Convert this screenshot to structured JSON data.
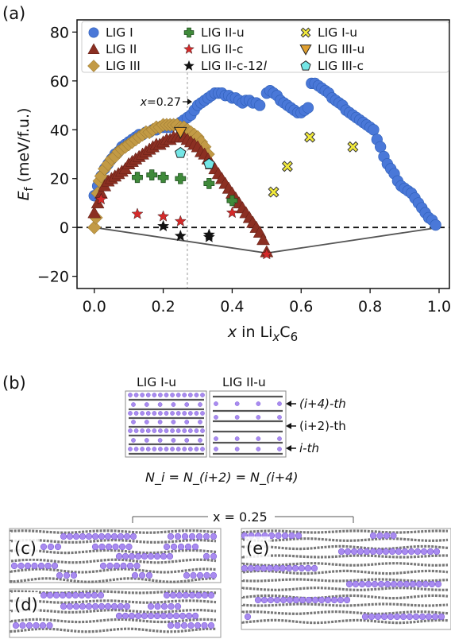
{
  "panels": {
    "a": "(a)",
    "b": "(b)",
    "c": "(c)",
    "d": "(d)",
    "e": "(e)"
  },
  "panel_b": {
    "left_title": "LIG I-u",
    "right_title": "LIG II-u",
    "layer_labels": [
      "(i+4)-th",
      "(i+2)-th",
      "i-th"
    ],
    "equation": "N_i = N_(i+2) = N_(i+4)"
  },
  "panel_c_e_label": "x = 0.25",
  "chart_data": {
    "type": "scatter",
    "xlabel": "x in LixC6",
    "ylabel": "Ef (meV/f.u.)",
    "xlim": [
      -0.05,
      1.03
    ],
    "ylim": [
      -25,
      85
    ],
    "xticks": [
      "0.0",
      "0.2",
      "0.4",
      "0.6",
      "0.8",
      "1.0"
    ],
    "yticks": [
      "−20",
      "0",
      "20",
      "40",
      "60",
      "80"
    ],
    "annotation": "x=0.27",
    "annotation_x": 0.27,
    "legend_position": "top",
    "hull": {
      "x": [
        0.0,
        0.5,
        1.0
      ],
      "y": [
        0,
        -10.5,
        0
      ]
    },
    "zero_line": 0,
    "series": [
      {
        "name": "LIG I",
        "marker": "circle",
        "color": "#4a78d8",
        "x": [
          0.0,
          0.01,
          0.02,
          0.03,
          0.04,
          0.05,
          0.06,
          0.07,
          0.08,
          0.09,
          0.1,
          0.11,
          0.12,
          0.13,
          0.14,
          0.15,
          0.16,
          0.17,
          0.18,
          0.19,
          0.2,
          0.21,
          0.22,
          0.23,
          0.24,
          0.25,
          0.26,
          0.27,
          0.28,
          0.29,
          0.3,
          0.31,
          0.32,
          0.33,
          0.34,
          0.35,
          0.36,
          0.37,
          0.38,
          0.39,
          0.4,
          0.41,
          0.42,
          0.43,
          0.44,
          0.45,
          0.46,
          0.47,
          0.48,
          0.5,
          0.51,
          0.52,
          0.53,
          0.54,
          0.55,
          0.56,
          0.57,
          0.58,
          0.59,
          0.6,
          0.61,
          0.62,
          0.63,
          0.64,
          0.65,
          0.66,
          0.67,
          0.68,
          0.69,
          0.7,
          0.71,
          0.72,
          0.73,
          0.74,
          0.75,
          0.76,
          0.77,
          0.78,
          0.79,
          0.8,
          0.81,
          0.82,
          0.83,
          0.84,
          0.85,
          0.86,
          0.87,
          0.88,
          0.89,
          0.9,
          0.91,
          0.92,
          0.93,
          0.94,
          0.95,
          0.96,
          0.97,
          0.98,
          0.99
        ],
        "y": [
          13,
          17,
          21,
          24,
          26,
          28,
          30,
          31,
          33,
          34,
          35,
          36,
          37,
          38,
          38,
          39,
          39,
          40,
          40,
          41,
          41,
          41,
          41,
          42,
          42,
          43,
          44,
          45,
          46,
          48,
          50,
          51,
          52,
          53,
          54,
          55,
          55,
          55,
          54,
          54,
          53,
          53,
          52,
          51,
          52,
          52,
          51,
          51,
          50,
          55,
          56,
          55,
          54,
          52,
          51,
          50,
          49,
          48,
          47,
          47,
          48,
          49,
          59,
          59,
          58,
          57,
          56,
          55,
          53,
          52,
          51,
          50,
          48,
          47,
          46,
          45,
          44,
          43,
          42,
          41,
          40,
          36,
          33,
          29,
          26,
          24,
          22,
          19,
          17,
          16,
          15,
          14,
          12,
          10,
          8,
          6,
          4,
          3,
          1
        ]
      },
      {
        "name": "LIG II",
        "marker": "triangle",
        "color": "#8b2f22",
        "x": [
          0.0,
          0.01,
          0.02,
          0.03,
          0.04,
          0.05,
          0.06,
          0.07,
          0.08,
          0.09,
          0.1,
          0.11,
          0.12,
          0.13,
          0.14,
          0.15,
          0.16,
          0.17,
          0.18,
          0.19,
          0.2,
          0.21,
          0.22,
          0.23,
          0.24,
          0.25,
          0.26,
          0.27,
          0.28,
          0.29,
          0.3,
          0.31,
          0.32,
          0.33,
          0.34,
          0.35,
          0.36,
          0.37,
          0.38,
          0.39,
          0.4,
          0.41,
          0.42,
          0.43,
          0.44,
          0.45,
          0.46,
          0.47,
          0.48,
          0.49,
          0.5
        ],
        "y": [
          6,
          10,
          14,
          17,
          19,
          20,
          21,
          22,
          23,
          24,
          26,
          27,
          28,
          29,
          30,
          31,
          32,
          33,
          34,
          34,
          35,
          36,
          36,
          37,
          37,
          37,
          37,
          36,
          35,
          34,
          33,
          31,
          30,
          28,
          26,
          24,
          22,
          20,
          18,
          16,
          14,
          12,
          10,
          8,
          6,
          4,
          2,
          0,
          -2,
          -5,
          -10
        ]
      },
      {
        "name": "LIG III",
        "marker": "diamond",
        "color": "#c29a45",
        "x": [
          0.0,
          0.005,
          0.01,
          0.015,
          0.02,
          0.03,
          0.04,
          0.05,
          0.06,
          0.07,
          0.08,
          0.09,
          0.1,
          0.11,
          0.12,
          0.13,
          0.14,
          0.15,
          0.16,
          0.17,
          0.18,
          0.19,
          0.2,
          0.21,
          0.22,
          0.23,
          0.24,
          0.25,
          0.26,
          0.27,
          0.28,
          0.29,
          0.3,
          0.31,
          0.32,
          0.33
        ],
        "y": [
          0,
          4,
          14,
          19,
          21,
          24,
          26,
          28,
          29,
          31,
          32,
          33,
          34,
          35,
          36,
          37,
          38,
          39,
          39,
          40,
          41,
          41,
          42,
          42,
          42,
          42,
          42,
          41,
          41,
          40,
          39,
          38,
          37,
          35,
          33,
          30
        ]
      },
      {
        "name": "LIG II-u",
        "marker": "plus",
        "color": "#3f8a3a",
        "x": [
          0.125,
          0.167,
          0.2,
          0.25,
          0.333,
          0.4
        ],
        "y": [
          20.5,
          21.5,
          20.5,
          20,
          18,
          11
        ]
      },
      {
        "name": "LIG II-c",
        "marker": "star",
        "color": "#d42a2a",
        "x": [
          0.02,
          0.125,
          0.2,
          0.25,
          0.4,
          0.5
        ],
        "y": [
          11.5,
          5.5,
          4.5,
          2.5,
          6,
          -11
        ]
      },
      {
        "name": "LIG II-c-12l",
        "marker": "star",
        "color": "#111111",
        "x": [
          0.2,
          0.25,
          0.333,
          0.333
        ],
        "y": [
          0.5,
          -3.5,
          -3,
          -4
        ]
      },
      {
        "name": "LIG I-u",
        "marker": "x-square",
        "color": "#f2ea3c",
        "x": [
          0.52,
          0.56,
          0.625,
          0.75
        ],
        "y": [
          14.5,
          25,
          37,
          33
        ]
      },
      {
        "name": "LIG III-u",
        "marker": "triangle-down",
        "color": "#e0a030",
        "x": [
          0.25
        ],
        "y": [
          39
        ]
      },
      {
        "name": "LIG III-c",
        "marker": "pentagon",
        "color": "#74e6e6",
        "x": [
          0.25,
          0.333
        ],
        "y": [
          30.5,
          26
        ]
      }
    ]
  }
}
